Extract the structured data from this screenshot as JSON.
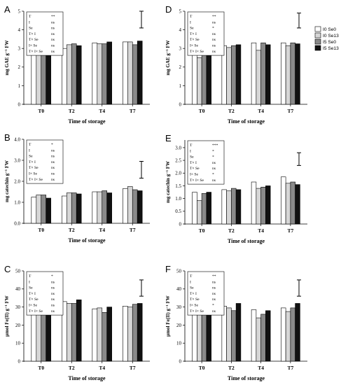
{
  "legend": {
    "entries": [
      "I0 Se0",
      "I0 Se13",
      "I5 Se0",
      "I5 Se13"
    ]
  },
  "series_colors": [
    "#ffffff",
    "#d6d6d6",
    "#8a8a8a",
    "#111111"
  ],
  "chart_data": [
    {
      "panel": "A",
      "type": "bar",
      "categories": [
        "T0",
        "T2",
        "T4",
        "T7"
      ],
      "xlabel": "Time of storage",
      "ylabel": "mg GAE g⁻¹ FW",
      "ylim": [
        0,
        5
      ],
      "yticks": [
        "0",
        "1",
        "2",
        "3",
        "4",
        "5"
      ],
      "series": [
        {
          "name": "I0 Se0",
          "values": [
            3.05,
            3.0,
            3.3,
            3.35
          ]
        },
        {
          "name": "I0 Se13",
          "values": [
            2.95,
            3.2,
            3.25,
            3.35
          ]
        },
        {
          "name": "I5 Se0",
          "values": [
            3.0,
            3.25,
            3.25,
            3.2
          ]
        },
        {
          "name": "I5 Se13",
          "values": [
            2.8,
            3.15,
            3.35,
            3.4
          ]
        }
      ],
      "error_bar": [
        4.1,
        5.0
      ],
      "stats": [
        [
          "T",
          "**"
        ],
        [
          "I",
          "ns"
        ],
        [
          "Se",
          "ns"
        ],
        [
          "T× I",
          "ns"
        ],
        [
          "T× Se",
          "ns"
        ],
        [
          "I× Se",
          "ns"
        ],
        [
          "T× I× Se",
          "ns"
        ]
      ]
    },
    {
      "panel": "D",
      "type": "bar",
      "categories": [
        "T0",
        "T2",
        "T4",
        "T7"
      ],
      "xlabel": "Time of storage",
      "ylabel": "mg GAE g⁻¹ FW",
      "ylim": [
        0,
        5
      ],
      "yticks": [
        "0",
        "1",
        "2",
        "3",
        "4",
        "5"
      ],
      "series": [
        {
          "name": "I0 Se0",
          "values": [
            3.05,
            3.15,
            3.3,
            3.3
          ]
        },
        {
          "name": "I0 Se13",
          "values": [
            2.5,
            3.05,
            2.9,
            3.15
          ]
        },
        {
          "name": "I5 Se0",
          "values": [
            2.9,
            3.15,
            3.3,
            3.3
          ]
        },
        {
          "name": "I5 Se13",
          "values": [
            2.95,
            3.2,
            3.2,
            3.25
          ]
        }
      ],
      "error_bar": [
        4.1,
        4.9
      ],
      "stats": [
        [
          "T",
          "**"
        ],
        [
          "I",
          "ns"
        ],
        [
          "Se",
          "*"
        ],
        [
          "T× I",
          "ns"
        ],
        [
          "T× Se",
          "ns"
        ],
        [
          "I× Se",
          "ns"
        ],
        [
          "T× I× Se",
          "ns"
        ]
      ]
    },
    {
      "panel": "B",
      "type": "bar",
      "categories": [
        "T0",
        "T2",
        "T4",
        "T7"
      ],
      "xlabel": "Time of storage",
      "ylabel": "mg catechin g⁻¹ FW",
      "ylim": [
        0,
        4
      ],
      "yticks": [
        "0.0",
        "1.0",
        "2.0",
        "3.0",
        "4.0"
      ],
      "series": [
        {
          "name": "I0 Se0",
          "values": [
            1.25,
            1.3,
            1.5,
            1.65
          ]
        },
        {
          "name": "I0 Se13",
          "values": [
            1.35,
            1.45,
            1.5,
            1.75
          ]
        },
        {
          "name": "I5 Se0",
          "values": [
            1.35,
            1.45,
            1.55,
            1.6
          ]
        },
        {
          "name": "I5 Se13",
          "values": [
            1.2,
            1.4,
            1.45,
            1.55
          ]
        }
      ],
      "error_bar": [
        2.15,
        2.95
      ],
      "stats": [
        [
          "T",
          "*"
        ],
        [
          "I",
          "ns"
        ],
        [
          "Se",
          "ns"
        ],
        [
          "T× I",
          "ns"
        ],
        [
          "T× Se",
          "ns"
        ],
        [
          "I× Se",
          "ns"
        ],
        [
          "T× I× Se",
          "ns"
        ]
      ]
    },
    {
      "panel": "E",
      "type": "bar",
      "categories": [
        "T0",
        "T2",
        "T4",
        "T7"
      ],
      "xlabel": "Time of storage",
      "ylabel": "mg catechin g⁻¹ FW",
      "ylim": [
        0,
        3.3
      ],
      "yticks": [
        "0",
        "0.5",
        "1.0",
        "1.5",
        "2.0",
        "2.5",
        "3.0"
      ],
      "series": [
        {
          "name": "I0 Se0",
          "values": [
            1.25,
            1.35,
            1.65,
            1.85
          ]
        },
        {
          "name": "I0 Se13",
          "values": [
            0.92,
            1.3,
            1.4,
            1.6
          ]
        },
        {
          "name": "I5 Se0",
          "values": [
            1.2,
            1.4,
            1.45,
            1.65
          ]
        },
        {
          "name": "I5 Se13",
          "values": [
            1.25,
            1.35,
            1.5,
            1.55
          ]
        }
      ],
      "error_bar": [
        2.3,
        2.8
      ],
      "stats": [
        [
          "T",
          "***"
        ],
        [
          "I",
          "*"
        ],
        [
          "Se",
          "*"
        ],
        [
          "T× I",
          "ns"
        ],
        [
          "T× Se",
          "ns"
        ],
        [
          "I× Se",
          "*"
        ],
        [
          "T× I× Se",
          "ns"
        ]
      ]
    },
    {
      "panel": "C",
      "type": "bar",
      "categories": [
        "T0",
        "T2",
        "T4",
        "T7"
      ],
      "xlabel": "Time of storage",
      "ylabel": "µmol Fe(II) g⁻¹ FW",
      "ylim": [
        0,
        50
      ],
      "yticks": [
        "0",
        "10",
        "20",
        "30",
        "40",
        "50"
      ],
      "series": [
        {
          "name": "I0 Se0",
          "values": [
            27,
            33,
            29,
            30.5
          ]
        },
        {
          "name": "I0 Se13",
          "values": [
            28.5,
            32,
            29.5,
            30
          ]
        },
        {
          "name": "I5 Se0",
          "values": [
            30.5,
            32,
            27,
            31.5
          ]
        },
        {
          "name": "I5 Se13",
          "values": [
            32,
            34,
            30,
            32
          ]
        }
      ],
      "error_bar": [
        36,
        45
      ],
      "stats": [
        [
          "T",
          "*"
        ],
        [
          "I",
          "ns"
        ],
        [
          "Se",
          "ns"
        ],
        [
          "T× I",
          "ns"
        ],
        [
          "T× Se",
          "ns"
        ],
        [
          "I× Se",
          "ns"
        ],
        [
          "T× I× Se",
          "ns"
        ]
      ]
    },
    {
      "panel": "F",
      "type": "bar",
      "categories": [
        "T0",
        "T2",
        "T4",
        "T7"
      ],
      "xlabel": "Time of storage",
      "ylabel": "µmol Fe(II) g⁻¹ FW",
      "ylim": [
        0,
        50
      ],
      "yticks": [
        "0",
        "10",
        "20",
        "30",
        "40",
        "50"
      ],
      "series": [
        {
          "name": "I0 Se0",
          "values": [
            27,
            30.5,
            28.5,
            29.5
          ]
        },
        {
          "name": "I0 Se13",
          "values": [
            29.5,
            29.5,
            24,
            27.5
          ]
        },
        {
          "name": "I5 Se0",
          "values": [
            26.5,
            28,
            26,
            29.5
          ]
        },
        {
          "name": "I5 Se13",
          "values": [
            28,
            32,
            28,
            32
          ]
        }
      ],
      "error_bar": [
        36,
        45
      ],
      "stats": [
        [
          "T",
          "**"
        ],
        [
          "I",
          "ns"
        ],
        [
          "Se",
          "ns"
        ],
        [
          "T× I",
          "ns"
        ],
        [
          "T× Se",
          "ns"
        ],
        [
          "I× Se",
          "*"
        ],
        [
          "T× I× Se",
          "ns"
        ]
      ]
    }
  ]
}
